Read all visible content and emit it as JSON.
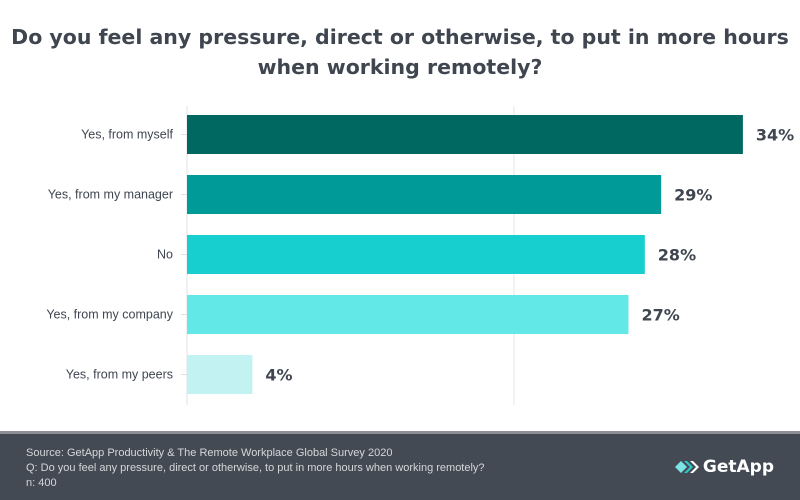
{
  "chart_data": {
    "type": "bar",
    "orientation": "horizontal",
    "title": "Do you feel any pressure, direct or otherwise, to put in more hours when working remotely?",
    "categories": [
      "Yes, from myself",
      "Yes, from my manager",
      "No",
      "Yes, from my company",
      "Yes, from my peers"
    ],
    "values": [
      34,
      29,
      28,
      27,
      4
    ],
    "labels": [
      "34%",
      "29%",
      "28%",
      "27%",
      "4%"
    ],
    "colors": [
      "#006861",
      "#009b98",
      "#18cfd0",
      "#63e8e8",
      "#c2f2f1"
    ],
    "xlim": [
      0,
      40
    ],
    "grid": true
  },
  "footer": {
    "source": "Source: GetApp Productivity & The Remote Workplace Global Survey 2020",
    "question": "Q: Do you feel any pressure, direct or otherwise, to put in more hours when working remotely?",
    "n": "n: 400",
    "logo": "GetApp"
  }
}
